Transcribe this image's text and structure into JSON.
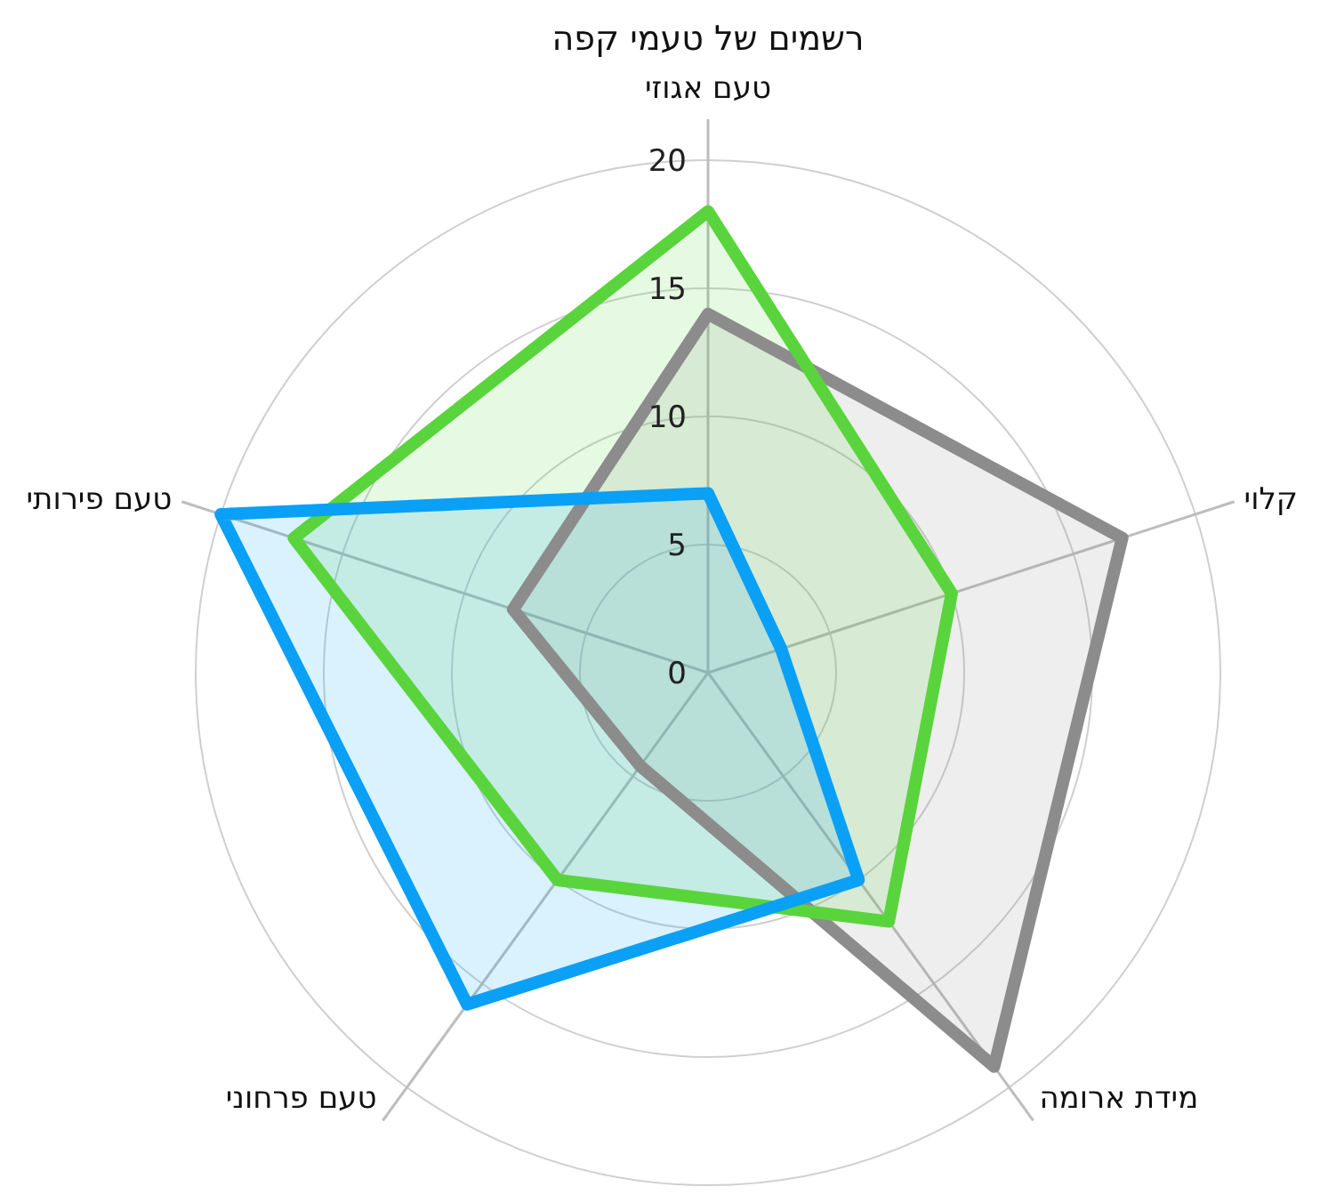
{
  "chart_data": {
    "type": "radar",
    "title": "רשמים של טעמי קפה",
    "categories": [
      "טעם אגוזי",
      "קלוי",
      "מידת ארומה",
      "טעם פרחוני",
      "טעם פירותי"
    ],
    "ylim": [
      0,
      20
    ],
    "yticks": [
      0,
      5,
      10,
      15,
      20
    ],
    "grid": true,
    "series": [
      {
        "color": "#8c8c8c",
        "values": [
          14,
          17,
          19,
          4.5,
          8
        ]
      },
      {
        "color": "#5ad43c",
        "values": [
          18,
          10,
          12,
          10,
          17
        ]
      },
      {
        "color": "#0aa0f5",
        "values": [
          7,
          3,
          10,
          16,
          20
        ]
      }
    ]
  }
}
